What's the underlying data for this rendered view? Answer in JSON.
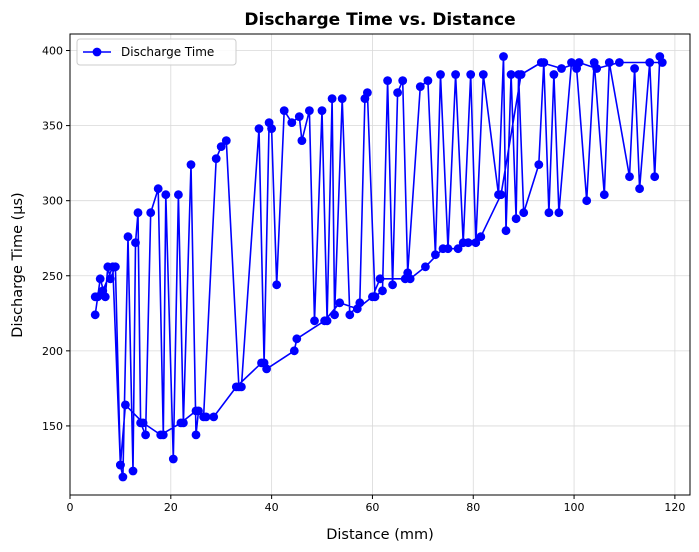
{
  "chart_data": {
    "type": "line",
    "title": "Discharge Time vs. Distance",
    "xlabel": "Distance (mm)",
    "ylabel": "Discharge Time (µs)",
    "xlim": [
      0,
      123
    ],
    "ylim": [
      104,
      411
    ],
    "xticks": [
      0,
      20,
      40,
      60,
      80,
      100,
      120
    ],
    "yticks": [
      150,
      200,
      250,
      300,
      350,
      400
    ],
    "grid": true,
    "legend": {
      "placement": "top-left"
    },
    "series": [
      {
        "name": "Discharge Time",
        "color": "#0000ff",
        "marker": "circle",
        "points": [
          [
            5.0,
            224
          ],
          [
            5.5,
            236
          ],
          [
            6.0,
            248
          ],
          [
            7.0,
            236
          ],
          [
            7.5,
            256
          ],
          [
            8.0,
            248
          ],
          [
            9.0,
            256
          ],
          [
            10.0,
            124
          ],
          [
            10.5,
            116
          ],
          [
            11.5,
            276
          ],
          [
            12.5,
            120
          ],
          [
            13.0,
            272
          ],
          [
            13.5,
            292
          ],
          [
            14.0,
            152
          ],
          [
            15.0,
            144
          ],
          [
            16.0,
            292
          ],
          [
            17.5,
            308
          ],
          [
            18.5,
            144
          ],
          [
            19.0,
            304
          ],
          [
            20.5,
            128
          ],
          [
            21.5,
            304
          ],
          [
            22.5,
            152
          ],
          [
            24.0,
            324
          ],
          [
            25.0,
            144
          ],
          [
            25.5,
            160
          ],
          [
            26.5,
            156
          ],
          [
            29.0,
            328
          ],
          [
            30.0,
            336
          ],
          [
            31.0,
            340
          ],
          [
            33.5,
            176
          ],
          [
            34.0,
            176
          ],
          [
            37.5,
            348
          ],
          [
            38.5,
            192
          ],
          [
            39.5,
            352
          ],
          [
            40.0,
            348
          ],
          [
            41.0,
            244
          ],
          [
            42.5,
            360
          ],
          [
            44.0,
            352
          ],
          [
            45.5,
            356
          ],
          [
            46.0,
            340
          ],
          [
            47.5,
            360
          ],
          [
            48.5,
            220
          ],
          [
            50.0,
            360
          ],
          [
            51.0,
            220
          ],
          [
            52.0,
            368
          ],
          [
            52.5,
            224
          ],
          [
            54.0,
            368
          ],
          [
            55.5,
            224
          ],
          [
            57.5,
            232
          ],
          [
            58.5,
            368
          ],
          [
            59.0,
            372
          ],
          [
            60.5,
            236
          ],
          [
            62.0,
            240
          ],
          [
            63.0,
            380
          ],
          [
            64.0,
            244
          ],
          [
            65.0,
            372
          ],
          [
            66.0,
            380
          ],
          [
            67.0,
            252
          ],
          [
            69.5,
            376
          ],
          [
            71.0,
            380
          ],
          [
            72.5,
            264
          ],
          [
            73.5,
            384
          ],
          [
            75.0,
            268
          ],
          [
            76.5,
            384
          ],
          [
            78.0,
            272
          ],
          [
            79.5,
            384
          ],
          [
            80.5,
            272
          ],
          [
            82.0,
            384
          ],
          [
            85.0,
            304
          ],
          [
            86.0,
            396
          ],
          [
            86.5,
            280
          ],
          [
            87.5,
            384
          ],
          [
            88.5,
            288
          ],
          [
            89.0,
            384
          ],
          [
            90.0,
            292
          ],
          [
            93.0,
            324
          ],
          [
            94.0,
            392
          ],
          [
            95.0,
            292
          ],
          [
            96.0,
            384
          ],
          [
            97.0,
            292
          ],
          [
            99.5,
            392
          ],
          [
            100.5,
            388
          ],
          [
            102.5,
            300
          ],
          [
            104.0,
            392
          ],
          [
            106.0,
            304
          ],
          [
            107.0,
            392
          ],
          [
            111.0,
            316
          ],
          [
            112.0,
            388
          ],
          [
            113.0,
            308
          ],
          [
            115.0,
            392
          ],
          [
            116.0,
            316
          ],
          [
            117.0,
            396
          ],
          [
            117.5,
            392
          ],
          [
            109.0,
            392
          ],
          [
            104.5,
            388
          ],
          [
            101.0,
            392
          ],
          [
            97.5,
            388
          ],
          [
            93.5,
            392
          ],
          [
            89.5,
            384
          ],
          [
            85.5,
            304
          ],
          [
            81.5,
            276
          ],
          [
            79.0,
            272
          ],
          [
            77.0,
            268
          ],
          [
            74.0,
            268
          ],
          [
            70.5,
            256
          ],
          [
            67.5,
            248
          ],
          [
            66.5,
            248
          ],
          [
            61.5,
            248
          ],
          [
            60.0,
            236
          ],
          [
            57.0,
            228
          ],
          [
            53.5,
            232
          ],
          [
            50.5,
            220
          ],
          [
            45.0,
            208
          ],
          [
            44.5,
            200
          ],
          [
            39.0,
            188
          ],
          [
            38.0,
            192
          ],
          [
            33.0,
            176
          ],
          [
            28.5,
            156
          ],
          [
            27.0,
            156
          ],
          [
            25.0,
            160
          ],
          [
            22.0,
            152
          ],
          [
            18.0,
            144
          ],
          [
            14.5,
            152
          ],
          [
            11.0,
            164
          ],
          [
            10.0,
            124
          ],
          [
            8.5,
            256
          ],
          [
            6.5,
            240
          ],
          [
            5.0,
            236
          ]
        ]
      }
    ]
  }
}
